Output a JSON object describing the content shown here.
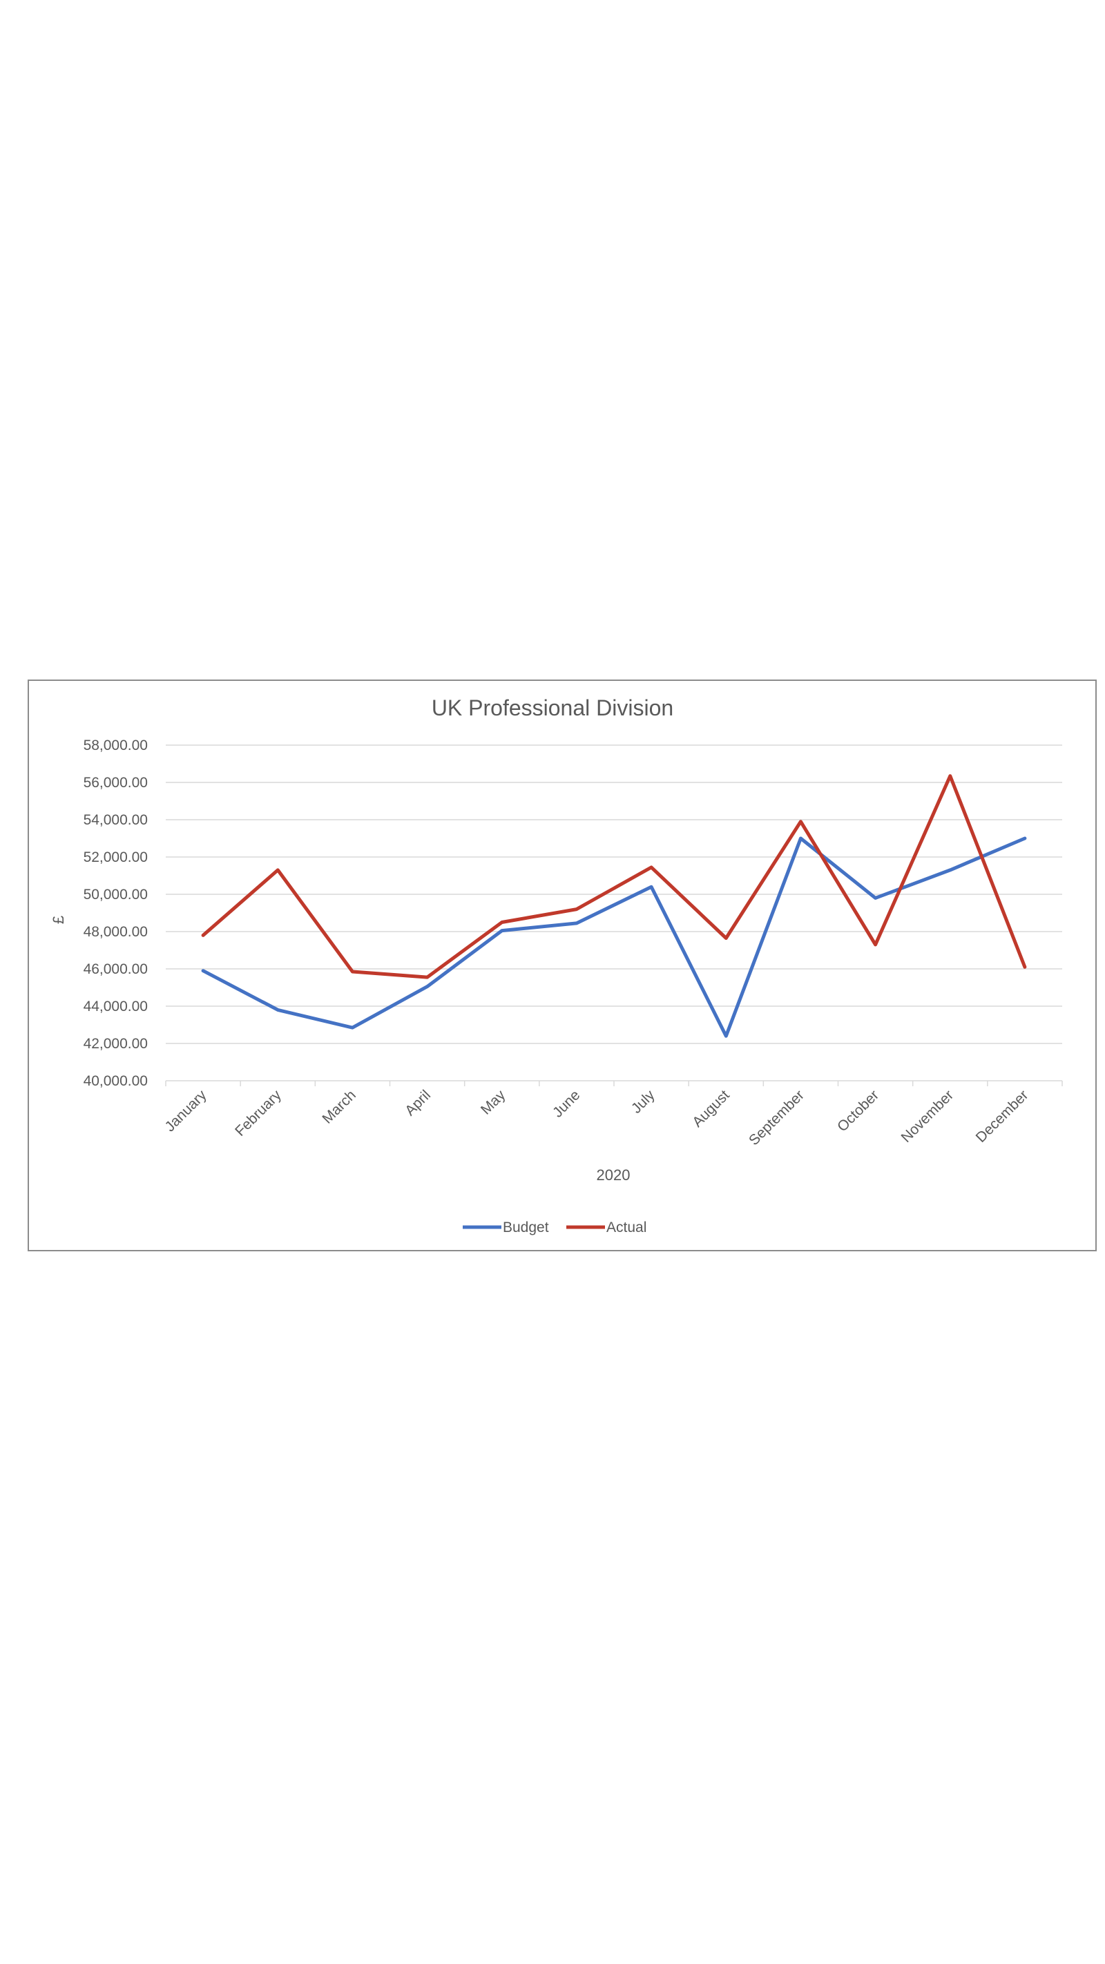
{
  "chart_data": {
    "type": "line",
    "title": "UK Professional Division",
    "xlabel": "2020",
    "ylabel": "£",
    "categories": [
      "January",
      "February",
      "March",
      "April",
      "May",
      "June",
      "July",
      "August",
      "September",
      "October",
      "November",
      "December"
    ],
    "series": [
      {
        "name": "Budget",
        "color": "#4472c4",
        "values": [
          45900,
          43800,
          42850,
          45050,
          48050,
          48450,
          50400,
          42400,
          53000,
          49800,
          51300,
          53000
        ]
      },
      {
        "name": "Actual",
        "color": "#c0392b",
        "values": [
          47800,
          51300,
          45850,
          45550,
          48500,
          49200,
          51450,
          47650,
          53900,
          47300,
          56350,
          46100
        ]
      }
    ],
    "ylim": [
      40000,
      58000
    ],
    "y_ticks": [
      40000,
      42000,
      44000,
      46000,
      48000,
      50000,
      52000,
      54000,
      56000,
      58000
    ],
    "y_tick_labels": [
      "40,000.00",
      "42,000.00",
      "44,000.00",
      "46,000.00",
      "48,000.00",
      "50,000.00",
      "52,000.00",
      "54,000.00",
      "56,000.00",
      "58,000.00"
    ],
    "grid": true,
    "legend_position": "bottom"
  }
}
